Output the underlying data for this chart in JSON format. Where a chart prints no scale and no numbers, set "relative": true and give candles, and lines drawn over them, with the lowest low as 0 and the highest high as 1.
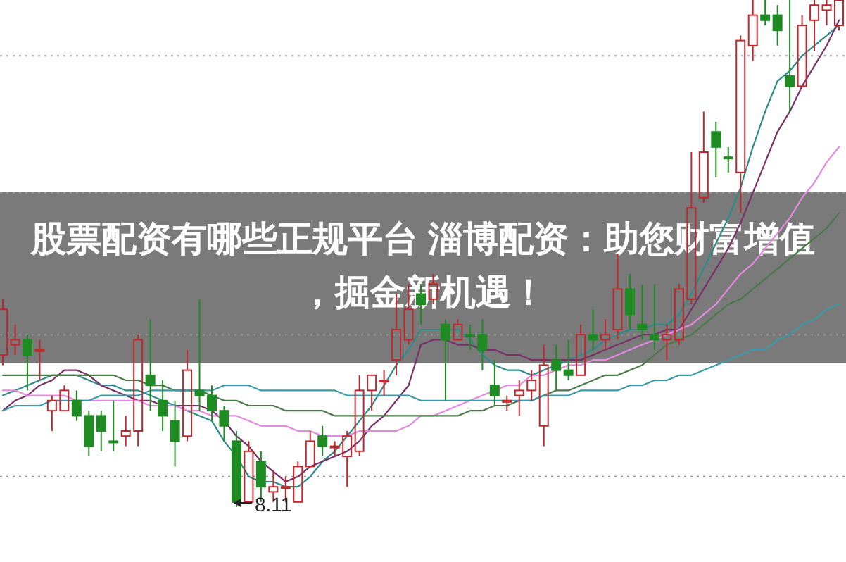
{
  "chart_data": {
    "type": "candlestick",
    "title": "股票配资有哪些正规平台 淄博配资：助您财富增值，掘金新机遇！",
    "relative": true,
    "categories": [
      null,
      null,
      null,
      null,
      null,
      null,
      null,
      null,
      null,
      null,
      null,
      null,
      null,
      null,
      null,
      null,
      null,
      null,
      null,
      null,
      null,
      null,
      null,
      null,
      null,
      null,
      null,
      null,
      null,
      null,
      null,
      null,
      null,
      null,
      null,
      null,
      null,
      null,
      null,
      null,
      null,
      null,
      null,
      null,
      null,
      null,
      null,
      null,
      null,
      null,
      null,
      null,
      null,
      null,
      null,
      null,
      null,
      null,
      null,
      null,
      null,
      null,
      null,
      null,
      null,
      null,
      null,
      null,
      null
    ],
    "ohlc": [
      [
        0.3,
        0.41,
        0.28,
        0.39
      ],
      [
        0.32,
        0.36,
        0.3,
        0.33
      ],
      [
        0.33,
        0.34,
        0.23,
        0.3
      ],
      [
        0.31,
        0.33,
        0.25,
        0.31
      ],
      [
        0.19,
        0.22,
        0.15,
        0.21
      ],
      [
        0.19,
        0.24,
        0.19,
        0.23
      ],
      [
        0.21,
        0.23,
        0.17,
        0.18
      ],
      [
        0.18,
        0.19,
        0.1,
        0.12
      ],
      [
        0.18,
        0.19,
        0.11,
        0.15
      ],
      [
        0.13,
        0.21,
        0.11,
        0.13
      ],
      [
        0.14,
        0.18,
        0.12,
        0.15
      ],
      [
        0.15,
        0.34,
        0.12,
        0.33
      ],
      [
        0.26,
        0.37,
        0.19,
        0.24
      ],
      [
        0.21,
        0.25,
        0.15,
        0.18
      ],
      [
        0.17,
        0.21,
        0.08,
        0.13
      ],
      [
        0.14,
        0.31,
        0.13,
        0.27
      ],
      [
        0.23,
        0.41,
        0.19,
        0.22
      ],
      [
        0.22,
        0.24,
        0.17,
        0.19
      ],
      [
        0.19,
        0.2,
        0.13,
        0.16
      ],
      [
        0.13,
        0.15,
        0,
        0.01
      ],
      [
        0.01,
        0.13,
        0.01,
        0.11
      ],
      [
        0.09,
        0.11,
        0.01,
        0.04
      ],
      [
        0.03,
        0.07,
        0.01,
        0.04
      ],
      [
        0.04,
        0.06,
        0.01,
        0.04
      ],
      [
        0.01,
        0.09,
        0.01,
        0.08
      ],
      [
        0.08,
        0.15,
        0.08,
        0.13
      ],
      [
        0.14,
        0.16,
        0.1,
        0.12
      ],
      [
        0.12,
        0.13,
        0.1,
        0.12
      ],
      [
        0.1,
        0.15,
        0.04,
        0.14
      ],
      [
        0.11,
        0.26,
        0.1,
        0.23
      ],
      [
        0.23,
        0.26,
        0.19,
        0.26
      ],
      [
        0.25,
        0.27,
        0.22,
        0.25
      ],
      [
        0.29,
        0.42,
        0.26,
        0.35
      ],
      [
        0.33,
        0.44,
        0.32,
        0.39
      ],
      [
        0.42,
        0.44,
        0.36,
        0.4
      ],
      [
        0.41,
        0.46,
        0.4,
        0.44
      ],
      [
        0.36,
        0.37,
        0.21,
        0.33
      ],
      [
        0.33,
        0.37,
        0.33,
        0.36
      ],
      [
        0.34,
        0.36,
        0.31,
        0.34
      ],
      [
        0.34,
        0.37,
        0.27,
        0.31
      ],
      [
        0.24,
        0.29,
        0.2,
        0.22
      ],
      [
        0.21,
        0.22,
        0.19,
        0.21
      ],
      [
        0.22,
        0.25,
        0.18,
        0.23
      ],
      [
        0.23,
        0.27,
        0.21,
        0.25
      ],
      [
        0.16,
        0.32,
        0.12,
        0.28
      ],
      [
        0.29,
        0.32,
        0.23,
        0.27
      ],
      [
        0.27,
        0.33,
        0.25,
        0.26
      ],
      [
        0.26,
        0.36,
        0.26,
        0.34
      ],
      [
        0.34,
        0.39,
        0.31,
        0.33
      ],
      [
        0.33,
        0.37,
        0.31,
        0.34
      ],
      [
        0.35,
        0.5,
        0.33,
        0.43
      ],
      [
        0.43,
        0.46,
        0.35,
        0.38
      ],
      [
        0.36,
        0.44,
        0.33,
        0.35
      ],
      [
        0.34,
        0.44,
        0.31,
        0.33
      ],
      [
        0.33,
        0.36,
        0.29,
        0.34
      ],
      [
        0.33,
        0.44,
        0.32,
        0.43
      ],
      [
        0.41,
        0.7,
        0.4,
        0.59
      ],
      [
        0.61,
        0.78,
        0.6,
        0.7
      ],
      [
        0.74,
        0.76,
        0.65,
        0.71
      ],
      [
        0.69,
        0.71,
        0.66,
        0.69
      ],
      [
        0.66,
        0.93,
        0.58,
        0.92
      ],
      [
        0.91,
        1,
        0.88,
        0.97
      ],
      [
        0.97,
        1,
        0.95,
        0.96
      ],
      [
        0.97,
        0.99,
        0.91,
        0.94
      ],
      [
        0.85,
        1,
        0.78,
        0.83
      ],
      [
        0.83,
        0.97,
        0.83,
        0.95
      ],
      [
        0.96,
        1,
        0.9,
        0.99
      ],
      [
        0.98,
        1,
        0.95,
        0.99
      ],
      [
        0.95,
        1,
        0.94,
        1
      ]
    ],
    "colors": [
      "#c0282d",
      "#c0282d",
      "#1e8c23",
      "#c0282d",
      "#c0282d",
      "#c0282d",
      "#1e8c23",
      "#1e8c23",
      "#1e8c23",
      "#1e8c23",
      "#c0282d",
      "#c0282d",
      "#1e8c23",
      "#1e8c23",
      "#1e8c23",
      "#c0282d",
      "#1e8c23",
      "#1e8c23",
      "#1e8c23",
      "#1e8c23",
      "#c0282d",
      "#1e8c23",
      "#c0282d",
      "#c0282d",
      "#c0282d",
      "#c0282d",
      "#1e8c23",
      "#c0282d",
      "#c0282d",
      "#c0282d",
      "#c0282d",
      "#c0282d",
      "#c0282d",
      "#c0282d",
      "#1e8c23",
      "#c0282d",
      "#1e8c23",
      "#c0282d",
      "#1e8c23",
      "#1e8c23",
      "#1e8c23",
      "#c0282d",
      "#c0282d",
      "#c0282d",
      "#c0282d",
      "#1e8c23",
      "#1e8c23",
      "#c0282d",
      "#1e8c23",
      "#c0282d",
      "#c0282d",
      "#1e8c23",
      "#1e8c23",
      "#1e8c23",
      "#c0282d",
      "#c0282d",
      "#c0282d",
      "#c0282d",
      "#1e8c23",
      "#1e8c23",
      "#c0282d",
      "#c0282d",
      "#1e8c23",
      "#1e8c23",
      "#1e8c23",
      "#c0282d",
      "#c0282d",
      "#c0282d",
      "#c0282d"
    ],
    "series": [
      {
        "type": "line",
        "color": "#2e8b8b",
        "values": [
          0.22,
          0.23,
          0.24,
          0.25,
          0.26,
          0.26,
          0.26,
          0.25,
          0.24,
          0.24,
          0.23,
          0.23,
          0.22,
          0.21,
          0.2,
          0.19,
          0.18,
          0.17,
          0.13,
          0.1,
          0.06,
          0.05,
          0.05,
          0.04,
          0.04,
          0.06,
          0.09,
          0.11,
          0.14,
          0.17,
          0.2,
          0.24,
          0.28,
          0.31,
          0.35,
          0.35,
          0.35,
          0.35,
          0.33,
          0.3,
          0.28,
          0.27,
          0.27,
          0.26,
          0.27,
          0.28,
          0.29,
          0.3,
          0.31,
          0.33,
          0.34,
          0.35,
          0.35,
          0.36,
          0.36,
          0.38,
          0.42,
          0.47,
          0.52,
          0.57,
          0.63,
          0.71,
          0.78,
          0.84,
          0.86,
          0.89,
          0.91,
          0.93,
          0.95
        ]
      },
      {
        "type": "line",
        "color": "#7b2f6a",
        "values": [
          0.19,
          0.21,
          0.22,
          0.24,
          0.25,
          0.27,
          0.27,
          0.26,
          0.24,
          0.23,
          0.22,
          0.21,
          0.21,
          0.2,
          0.2,
          0.2,
          0.2,
          0.19,
          0.17,
          0.14,
          0.12,
          0.09,
          0.07,
          0.05,
          0.06,
          0.08,
          0.09,
          0.1,
          0.11,
          0.13,
          0.16,
          0.18,
          0.21,
          0.24,
          0.32,
          0.33,
          0.33,
          0.32,
          0.32,
          0.31,
          0.31,
          0.3,
          0.3,
          0.29,
          0.29,
          0.29,
          0.29,
          0.29,
          0.3,
          0.31,
          0.32,
          0.33,
          0.34,
          0.34,
          0.35,
          0.35,
          0.39,
          0.43,
          0.47,
          0.51,
          0.56,
          0.62,
          0.68,
          0.74,
          0.78,
          0.83,
          0.87,
          0.91,
          0.96
        ]
      },
      {
        "type": "line",
        "color": "#e48ae0",
        "values": [
          0.23,
          0.23,
          0.22,
          0.22,
          0.22,
          0.22,
          0.21,
          0.21,
          0.21,
          0.21,
          0.21,
          0.21,
          0.2,
          0.2,
          0.2,
          0.19,
          0.19,
          0.18,
          0.18,
          0.18,
          0.17,
          0.16,
          0.16,
          0.16,
          0.15,
          0.15,
          0.14,
          0.14,
          0.14,
          0.15,
          0.15,
          0.15,
          0.15,
          0.16,
          0.18,
          0.18,
          0.19,
          0.2,
          0.21,
          0.22,
          0.23,
          0.24,
          0.24,
          0.26,
          0.26,
          0.27,
          0.28,
          0.28,
          0.29,
          0.29,
          0.3,
          0.31,
          0.32,
          0.33,
          0.34,
          0.35,
          0.36,
          0.38,
          0.4,
          0.43,
          0.46,
          0.48,
          0.51,
          0.54,
          0.57,
          0.61,
          0.64,
          0.68,
          0.71
        ]
      },
      {
        "type": "line",
        "color": "#4a7a4a",
        "values": [
          0.26,
          0.26,
          0.26,
          0.26,
          0.26,
          0.26,
          0.26,
          0.26,
          0.26,
          0.26,
          0.25,
          0.25,
          0.24,
          0.24,
          0.23,
          0.23,
          0.23,
          0.22,
          0.21,
          0.21,
          0.2,
          0.2,
          0.2,
          0.19,
          0.19,
          0.19,
          0.19,
          0.18,
          0.18,
          0.18,
          0.18,
          0.18,
          0.18,
          0.18,
          0.18,
          0.18,
          0.18,
          0.18,
          0.19,
          0.19,
          0.2,
          0.2,
          0.21,
          0.21,
          0.22,
          0.23,
          0.23,
          0.24,
          0.25,
          0.26,
          0.26,
          0.27,
          0.28,
          0.3,
          0.32,
          0.33,
          0.34,
          0.36,
          0.38,
          0.4,
          0.41,
          0.43,
          0.45,
          0.47,
          0.49,
          0.51,
          0.53,
          0.55,
          0.58
        ]
      },
      {
        "type": "line",
        "color": "#3a9aa8",
        "values": [
          0.19,
          0.2,
          0.2,
          0.2,
          0.21,
          0.21,
          0.21,
          0.21,
          0.22,
          0.22,
          0.22,
          0.22,
          0.23,
          0.23,
          0.23,
          0.23,
          0.23,
          0.23,
          0.24,
          0.24,
          0.24,
          0.23,
          0.23,
          0.23,
          0.23,
          0.23,
          0.23,
          0.23,
          0.22,
          0.22,
          0.22,
          0.22,
          0.22,
          0.22,
          0.21,
          0.21,
          0.21,
          0.21,
          0.21,
          0.21,
          0.21,
          0.21,
          0.21,
          0.21,
          0.22,
          0.22,
          0.22,
          0.23,
          0.23,
          0.23,
          0.23,
          0.24,
          0.24,
          0.25,
          0.25,
          0.26,
          0.26,
          0.27,
          0.28,
          0.29,
          0.3,
          0.31,
          0.31,
          0.33,
          0.34,
          0.36,
          0.37,
          0.39,
          0.4
        ]
      }
    ],
    "ref_lines": [
      {
        "axis": "y",
        "value": 0.89,
        "color": "#999999",
        "line_style": "dotted"
      },
      {
        "axis": "y",
        "value": 0.62,
        "color": "#999999",
        "line_style": "dotted"
      },
      {
        "axis": "y",
        "value": 0.34,
        "color": "#999999",
        "line_style": "dotted"
      },
      {
        "axis": "y",
        "value": 0.06,
        "color": "#999999",
        "line_style": "dotted"
      }
    ],
    "annotations": [
      "8.11"
    ]
  }
}
